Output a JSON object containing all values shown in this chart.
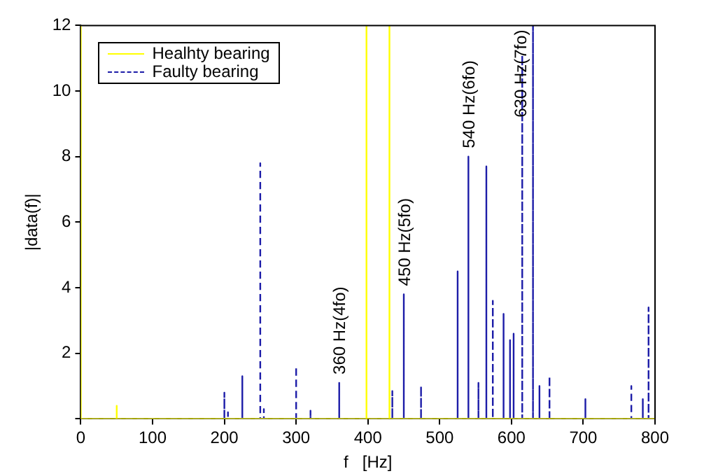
{
  "chart_data": {
    "type": "line",
    "xlabel": "f   [Hz]",
    "ylabel": "|data(f)|",
    "xlim": [
      0,
      800
    ],
    "xticks": [
      0,
      100,
      200,
      300,
      400,
      500,
      600,
      700,
      800
    ],
    "ylim": [
      0,
      12
    ],
    "yticks": [
      {
        "value": 0,
        "label": null
      },
      2,
      4,
      6,
      8,
      10,
      12
    ],
    "grid": false,
    "legend": "top left",
    "marker": "none",
    "series": [
      {
        "name": "Healhty bearing",
        "color": "#ffff00",
        "line_style": "solid",
        "x": [
          0,
          0,
          50,
          50,
          50,
          398,
          398,
          398,
          430,
          430,
          430,
          800
        ],
        "values": [
          12,
          0,
          0,
          0.4,
          0,
          0,
          12,
          0,
          0,
          12,
          0,
          0
        ]
      },
      {
        "name": "Faulty bearing",
        "color": "#1c1ca8",
        "line_style": "dashed",
        "x": [
          0,
          200,
          200,
          200,
          205,
          205,
          205,
          225,
          225,
          225,
          250,
          250,
          250,
          255,
          255,
          255,
          300,
          300,
          300,
          320,
          320,
          320,
          360,
          360,
          360,
          434,
          434,
          434,
          450,
          450,
          450,
          474,
          474,
          474,
          525,
          525,
          525,
          540,
          540,
          540,
          554,
          554,
          554,
          565,
          565,
          565,
          574,
          574,
          574,
          589,
          589,
          589,
          598,
          598,
          598,
          603,
          603,
          603,
          615,
          615,
          615,
          630,
          630,
          630,
          639,
          639,
          639,
          653,
          653,
          653,
          703,
          703,
          703,
          767,
          767,
          767,
          783,
          783,
          783,
          791,
          791,
          791,
          800
        ],
        "values": [
          0,
          0,
          0.8,
          0,
          0,
          0.2,
          0,
          0,
          1.3,
          0,
          0,
          7.8,
          0,
          0,
          0.3,
          0,
          0,
          1.6,
          0,
          0,
          0.25,
          0,
          0,
          1.1,
          0,
          0,
          0.85,
          0,
          0,
          3.8,
          0,
          0,
          1,
          0,
          0,
          4.5,
          0,
          0,
          8,
          0,
          0,
          1.1,
          0,
          0,
          7.7,
          0,
          0,
          3.6,
          0,
          0,
          3.2,
          0,
          0,
          2.4,
          0,
          0,
          2.6,
          0,
          0,
          11.1,
          0,
          0,
          12,
          0,
          0,
          1,
          0,
          0,
          1.3,
          0,
          0,
          0.6,
          0,
          0,
          1,
          0,
          0,
          0.6,
          0,
          0,
          3.4,
          0,
          0
        ]
      }
    ],
    "annotations": [
      {
        "text": "360 Hz(4fo)",
        "x": 360,
        "y": 1.1
      },
      {
        "text": "450 Hz(5fo)",
        "x": 450,
        "y": 3.8
      },
      {
        "text": "540 Hz(6fo)",
        "x": 540,
        "y": 8
      },
      {
        "text": "630 Hz(7fo)",
        "x": 630,
        "y": 12
      }
    ]
  }
}
